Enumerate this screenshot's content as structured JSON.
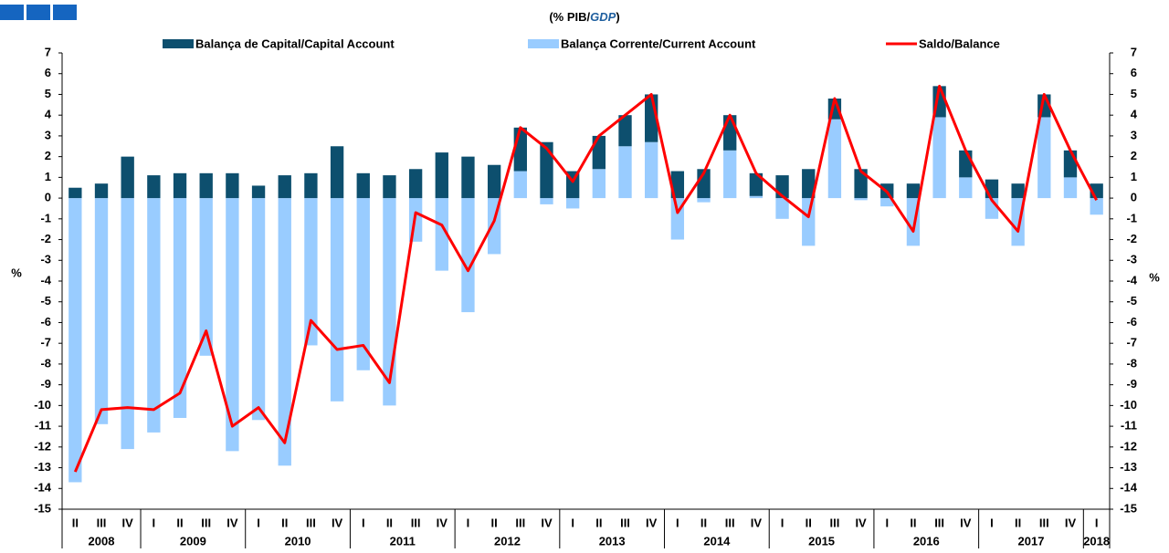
{
  "chart_data": {
    "type": "bar-line",
    "title_parts": [
      "(% PIB/",
      "GDP",
      ")"
    ],
    "ylabel": "%",
    "y2label": "%",
    "categories": [
      "II",
      "III",
      "IV",
      "I",
      "II",
      "III",
      "IV",
      "I",
      "II",
      "III",
      "IV",
      "I",
      "II",
      "III",
      "IV",
      "I",
      "II",
      "III",
      "IV",
      "I",
      "II",
      "III",
      "IV",
      "I",
      "II",
      "III",
      "IV",
      "I",
      "II",
      "III",
      "IV",
      "I",
      "II",
      "III",
      "IV",
      "I",
      "II",
      "III",
      "IV",
      "I"
    ],
    "years": [
      "2008",
      "2008",
      "2008",
      "2009",
      "2009",
      "2009",
      "2009",
      "2010",
      "2010",
      "2010",
      "2010",
      "2011",
      "2011",
      "2011",
      "2011",
      "2012",
      "2012",
      "2012",
      "2012",
      "2013",
      "2013",
      "2013",
      "2013",
      "2014",
      "2014",
      "2014",
      "2014",
      "2015",
      "2015",
      "2015",
      "2015",
      "2016",
      "2016",
      "2016",
      "2016",
      "2017",
      "2017",
      "2017",
      "2017",
      "2018"
    ],
    "series": [
      {
        "name": "Balança de Capital/Capital Account",
        "color": "#0d4f6e",
        "kind": "stacked-bar",
        "values": [
          0.5,
          0.7,
          2.0,
          1.1,
          1.2,
          1.2,
          1.2,
          0.6,
          1.1,
          1.2,
          2.5,
          1.2,
          1.1,
          1.4,
          2.2,
          2.0,
          1.6,
          2.1,
          2.7,
          1.3,
          1.6,
          1.5,
          2.3,
          1.3,
          1.4,
          1.7,
          1.1,
          1.1,
          1.4,
          1.0,
          1.4,
          0.7,
          0.7,
          1.5,
          1.3,
          0.9,
          0.7,
          1.1,
          1.3,
          0.7
        ]
      },
      {
        "name": "Balança Corrente/Current Account",
        "color": "#99ccff",
        "kind": "stacked-bar",
        "values": [
          -13.7,
          -10.9,
          -12.1,
          -11.3,
          -10.6,
          -7.6,
          -12.2,
          -10.7,
          -12.9,
          -7.1,
          -9.8,
          -8.3,
          -10.0,
          -2.1,
          -3.5,
          -5.5,
          -2.7,
          1.3,
          -0.3,
          -0.5,
          1.4,
          2.5,
          2.7,
          -2.0,
          -0.2,
          2.3,
          0.1,
          -1.0,
          -2.3,
          3.8,
          -0.1,
          -0.4,
          -2.3,
          3.9,
          1.0,
          -1.0,
          -2.3,
          3.9,
          1.0,
          -0.8
        ]
      },
      {
        "name": "Saldo/Balance",
        "color": "#ff0000",
        "kind": "line",
        "values": [
          -13.2,
          -10.2,
          -10.1,
          -10.2,
          -9.4,
          -6.4,
          -11.0,
          -10.1,
          -11.8,
          -5.9,
          -7.3,
          -7.1,
          -8.9,
          -0.7,
          -1.3,
          -3.5,
          -1.1,
          3.4,
          2.4,
          0.8,
          3.0,
          4.0,
          5.0,
          -0.7,
          1.2,
          4.0,
          1.2,
          0.1,
          -0.9,
          4.8,
          1.3,
          0.3,
          -1.6,
          5.4,
          2.3,
          -0.1,
          -1.6,
          5.0,
          2.3,
          -0.1
        ]
      }
    ],
    "ylim": [
      -15,
      7
    ],
    "yticks": [
      -15,
      -14,
      -13,
      -12,
      -11,
      -10,
      -9,
      -8,
      -7,
      -6,
      -5,
      -4,
      -3,
      -2,
      -1,
      0,
      1,
      2,
      3,
      4,
      5,
      6,
      7
    ],
    "grid": false
  }
}
